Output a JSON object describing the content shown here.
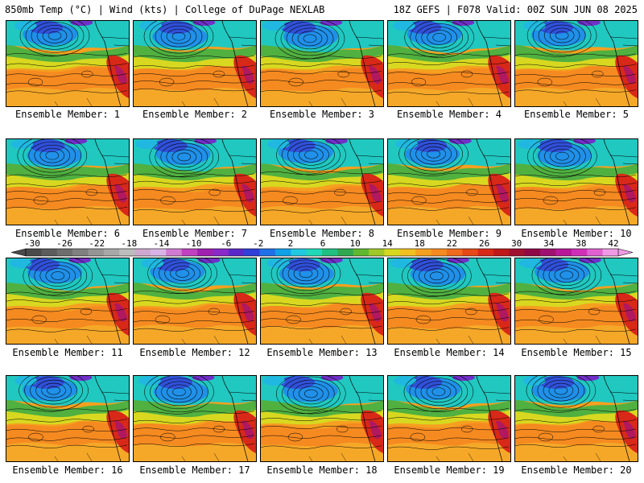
{
  "header": {
    "left": "850mb Temp (°C) | Wind (kts) | College of DuPage NEXLAB",
    "right": "18Z GEFS | F078 Valid: 00Z SUN JUN 08 2025"
  },
  "panels": [
    {
      "label": "Ensemble Member: 1"
    },
    {
      "label": "Ensemble Member: 2"
    },
    {
      "label": "Ensemble Member: 3"
    },
    {
      "label": "Ensemble Member: 4"
    },
    {
      "label": "Ensemble Member: 5"
    },
    {
      "label": "Ensemble Member: 6"
    },
    {
      "label": "Ensemble Member: 7"
    },
    {
      "label": "Ensemble Member: 8"
    },
    {
      "label": "Ensemble Member: 9"
    },
    {
      "label": "Ensemble Member: 10"
    },
    {
      "label": "Ensemble Member: 11"
    },
    {
      "label": "Ensemble Member: 12"
    },
    {
      "label": "Ensemble Member: 13"
    },
    {
      "label": "Ensemble Member: 14"
    },
    {
      "label": "Ensemble Member: 15"
    },
    {
      "label": "Ensemble Member: 16"
    },
    {
      "label": "Ensemble Member: 17"
    },
    {
      "label": "Ensemble Member: 18"
    },
    {
      "label": "Ensemble Member: 19"
    },
    {
      "label": "Ensemble Member: 20"
    }
  ],
  "colorbar": {
    "tick_labels": [
      "-30",
      "-26",
      "-22",
      "-18",
      "-14",
      "-10",
      "-6",
      "-2",
      "2",
      "6",
      "10",
      "14",
      "18",
      "22",
      "26",
      "30",
      "34",
      "38",
      "42"
    ],
    "colors": [
      "#4a4a4a",
      "#5c5c5c",
      "#6e6e6e",
      "#808080",
      "#959595",
      "#a8a8a8",
      "#bdbdbd",
      "#cfa8cf",
      "#d9b3e6",
      "#d27ad2",
      "#c040c0",
      "#a020b0",
      "#8a28c8",
      "#5a28c8",
      "#3040d8",
      "#2070e8",
      "#10a0e8",
      "#20c8e0",
      "#20d8b8",
      "#20c080",
      "#30a850",
      "#60b830",
      "#a0c828",
      "#d8d820",
      "#f0c020",
      "#f5a020",
      "#f58a20",
      "#f06a20",
      "#e84818",
      "#d82818",
      "#c01818",
      "#a01030",
      "#900848",
      "#a01070",
      "#b81898",
      "#d030b8",
      "#e060d0",
      "#f09ae6"
    ]
  }
}
